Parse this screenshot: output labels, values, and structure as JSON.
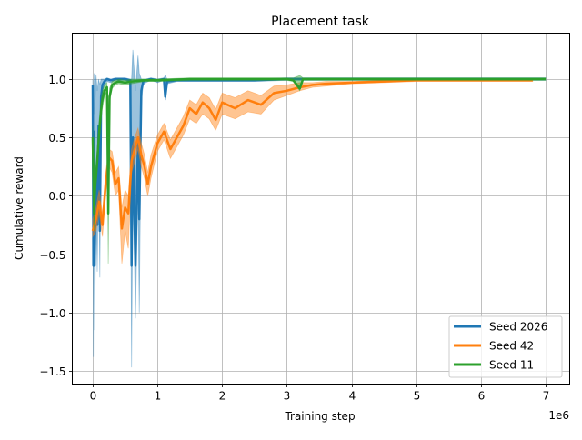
{
  "figure": {
    "title": "Placement task",
    "xlabel": "Training step",
    "ylabel": "Cumulative reward",
    "x_offset_label": "1e6"
  },
  "legend": {
    "items": [
      {
        "label": "Seed 2026",
        "color": "#1f77b4"
      },
      {
        "label": "Seed 42",
        "color": "#ff7f0e"
      },
      {
        "label": "Seed 11",
        "color": "#2ca02c"
      }
    ]
  },
  "chart_data": {
    "type": "line",
    "title": "Placement task",
    "xlabel": "Training step",
    "ylabel": "Cumulative reward",
    "x_scale_note": "x values in units of 1e6",
    "xlim": [
      -0.33,
      7.35
    ],
    "ylim": [
      -1.6,
      1.38
    ],
    "xticks": [
      0,
      1,
      2,
      3,
      4,
      5,
      6,
      7
    ],
    "yticks": [
      -1.5,
      -1.0,
      -0.5,
      0.0,
      0.5,
      1.0
    ],
    "xtick_labels": [
      "0",
      "1",
      "2",
      "3",
      "4",
      "5",
      "6",
      "7"
    ],
    "ytick_labels": [
      "−1.5",
      "−1.0",
      "−0.5",
      "0.0",
      "0.5",
      "1.0"
    ],
    "grid": true,
    "legend_position": "lower right",
    "series": [
      {
        "name": "Seed 2026",
        "color": "#1f77b4",
        "x": [
          0.0,
          0.01,
          0.02,
          0.03,
          0.05,
          0.07,
          0.09,
          0.11,
          0.13,
          0.15,
          0.18,
          0.22,
          0.28,
          0.35,
          0.42,
          0.5,
          0.58,
          0.6,
          0.62,
          0.66,
          0.7,
          0.72,
          0.75,
          0.78,
          0.82,
          0.9,
          1.0,
          1.1,
          1.12,
          1.15,
          1.3,
          1.6,
          2.0,
          2.5,
          3.0,
          4.0,
          5.0,
          6.0,
          7.0
        ],
        "y": [
          0.95,
          -0.6,
          0.55,
          -0.6,
          0.2,
          -0.25,
          0.6,
          -0.3,
          0.85,
          0.95,
          0.98,
          1.0,
          0.99,
          1.0,
          1.0,
          1.0,
          0.99,
          -0.6,
          0.5,
          -0.6,
          0.5,
          -0.2,
          0.9,
          0.98,
          0.99,
          1.0,
          0.99,
          1.0,
          0.85,
          0.98,
          0.99,
          0.99,
          0.99,
          0.99,
          1.0,
          1.0,
          1.0,
          1.0,
          1.0
        ],
        "band_low": [
          0.9,
          -1.38,
          0.3,
          -1.15,
          0.0,
          -0.65,
          0.4,
          -0.7,
          0.7,
          0.9,
          0.95,
          0.98,
          0.97,
          0.99,
          0.99,
          0.99,
          0.97,
          -1.47,
          0.2,
          -1.05,
          0.1,
          -1.0,
          0.8,
          0.95,
          0.97,
          0.99,
          0.97,
          0.99,
          0.82,
          0.96,
          0.98,
          0.98,
          0.98,
          0.98,
          0.99,
          0.99,
          0.99,
          0.99,
          0.99
        ],
        "band_high": [
          1.0,
          0.5,
          1.05,
          0.7,
          1.04,
          0.9,
          1.0,
          0.95,
          1.0,
          1.0,
          1.0,
          1.01,
          1.0,
          1.01,
          1.01,
          1.01,
          1.0,
          1.0,
          1.25,
          0.9,
          1.2,
          1.05,
          1.0,
          1.0,
          1.0,
          1.01,
          1.0,
          1.01,
          1.03,
          1.0,
          1.0,
          1.0,
          1.0,
          1.0,
          1.01,
          1.01,
          1.01,
          1.01,
          1.01
        ]
      },
      {
        "name": "Seed 42",
        "color": "#ff7f0e",
        "x": [
          0.0,
          0.05,
          0.1,
          0.15,
          0.2,
          0.25,
          0.3,
          0.35,
          0.4,
          0.45,
          0.5,
          0.55,
          0.6,
          0.65,
          0.7,
          0.75,
          0.8,
          0.85,
          0.9,
          1.0,
          1.1,
          1.2,
          1.3,
          1.4,
          1.5,
          1.6,
          1.7,
          1.8,
          1.9,
          2.0,
          2.2,
          2.4,
          2.6,
          2.8,
          3.0,
          3.2,
          3.4,
          3.6,
          4.0,
          4.5,
          5.0,
          5.5,
          6.0,
          6.5,
          6.8
        ],
        "y": [
          -0.3,
          -0.2,
          -0.05,
          -0.25,
          0.1,
          0.33,
          0.3,
          0.1,
          0.15,
          -0.28,
          -0.1,
          -0.15,
          0.3,
          0.4,
          0.5,
          0.35,
          0.25,
          0.1,
          0.25,
          0.45,
          0.55,
          0.4,
          0.5,
          0.6,
          0.75,
          0.7,
          0.8,
          0.75,
          0.65,
          0.8,
          0.75,
          0.82,
          0.78,
          0.88,
          0.9,
          0.93,
          0.95,
          0.96,
          0.97,
          0.98,
          0.99,
          0.99,
          0.99,
          0.99,
          0.99
        ],
        "band_low": [
          -0.35,
          -0.3,
          -0.15,
          -0.35,
          0.0,
          0.25,
          0.2,
          0.0,
          0.05,
          -0.58,
          -0.3,
          -0.45,
          0.2,
          0.3,
          0.4,
          0.25,
          0.15,
          0.0,
          0.15,
          0.38,
          0.48,
          0.32,
          0.42,
          0.52,
          0.66,
          0.62,
          0.7,
          0.66,
          0.56,
          0.7,
          0.66,
          0.72,
          0.7,
          0.82,
          0.86,
          0.9,
          0.93,
          0.94,
          0.96,
          0.97,
          0.98,
          0.98,
          0.98,
          0.98,
          0.98
        ],
        "band_high": [
          -0.2,
          -0.1,
          0.05,
          -0.15,
          0.2,
          0.4,
          0.38,
          0.2,
          0.25,
          -0.1,
          0.05,
          0.0,
          0.4,
          0.5,
          0.58,
          0.45,
          0.35,
          0.2,
          0.35,
          0.52,
          0.62,
          0.48,
          0.58,
          0.68,
          0.82,
          0.78,
          0.88,
          0.84,
          0.74,
          0.88,
          0.84,
          0.9,
          0.86,
          0.94,
          0.95,
          0.97,
          0.97,
          0.98,
          0.98,
          0.99,
          1.0,
          1.0,
          1.0,
          1.0,
          1.0
        ]
      },
      {
        "name": "Seed 11",
        "color": "#2ca02c",
        "x": [
          0.0,
          0.02,
          0.04,
          0.07,
          0.1,
          0.14,
          0.18,
          0.22,
          0.24,
          0.26,
          0.3,
          0.35,
          0.4,
          0.5,
          0.6,
          0.8,
          1.0,
          1.5,
          2.0,
          3.0,
          3.1,
          3.2,
          3.25,
          3.4,
          4.0,
          5.0,
          6.0,
          7.0
        ],
        "y": [
          0.5,
          -0.15,
          0.1,
          0.3,
          0.55,
          0.8,
          0.9,
          0.93,
          -0.15,
          0.85,
          0.95,
          0.97,
          0.98,
          0.97,
          0.98,
          0.99,
          0.99,
          1.0,
          1.0,
          1.0,
          0.99,
          0.92,
          1.0,
          1.0,
          1.0,
          1.0,
          1.0,
          1.0
        ],
        "band_low": [
          0.3,
          -0.3,
          0.0,
          0.2,
          0.45,
          0.72,
          0.85,
          0.9,
          -0.58,
          0.8,
          0.92,
          0.95,
          0.96,
          0.95,
          0.96,
          0.98,
          0.98,
          0.99,
          0.99,
          0.99,
          0.98,
          0.9,
          0.99,
          0.99,
          0.99,
          0.99,
          0.99,
          0.99
        ],
        "band_high": [
          0.6,
          0.0,
          0.2,
          0.4,
          0.65,
          0.88,
          0.95,
          0.97,
          0.2,
          0.92,
          0.98,
          0.99,
          1.0,
          0.99,
          1.0,
          1.0,
          1.0,
          1.01,
          1.01,
          1.01,
          1.01,
          1.03,
          1.01,
          1.01,
          1.01,
          1.01,
          1.01,
          1.01
        ]
      }
    ]
  }
}
